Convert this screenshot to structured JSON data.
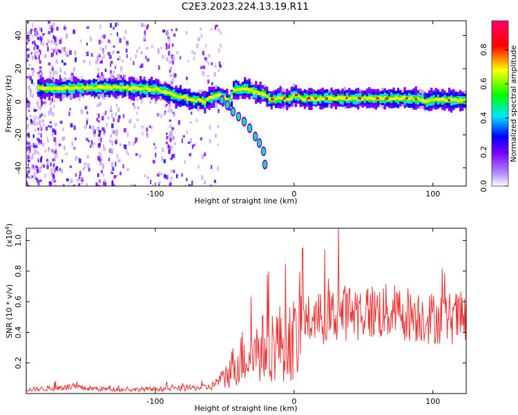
{
  "title": "C2E3.2023.224.13.19.R11",
  "chart_data": [
    {
      "type": "heatmap",
      "xlabel": "Height of straight line (km)",
      "ylabel": "Frequency (Hz)",
      "xlim": [
        -193,
        124
      ],
      "ylim": [
        -51,
        49
      ],
      "xticks": [
        -100,
        0,
        100
      ],
      "yticks": [
        -40,
        -20,
        0,
        20,
        40
      ],
      "colorbar": {
        "label": "Normalized spectral amplitude",
        "range": [
          0.0,
          0.97
        ],
        "ticks": [
          "0.0",
          "0.2",
          "0.4",
          "0.6",
          "0.8"
        ],
        "tick_values": [
          0.0,
          0.2,
          0.4,
          0.6,
          0.8
        ],
        "colormap": [
          "#ffffff",
          "#7a00ff",
          "#0000ff",
          "#00e5ff",
          "#00ff00",
          "#ffff00",
          "#ff0000",
          "#ff0066"
        ]
      },
      "main_trace": [
        [
          -185,
          8
        ],
        [
          -170,
          8
        ],
        [
          -155,
          8.5
        ],
        [
          -140,
          8.5
        ],
        [
          -125,
          8.5
        ],
        [
          -110,
          8
        ],
        [
          -100,
          7.5
        ],
        [
          -90,
          5
        ],
        [
          -85,
          3
        ],
        [
          -80,
          3
        ],
        [
          -75,
          1
        ],
        [
          -70,
          1
        ],
        [
          -65,
          0
        ],
        [
          -60,
          3
        ],
        [
          -55,
          4
        ],
        [
          -50,
          2
        ],
        [
          -47,
          -1
        ],
        [
          -44,
          8
        ],
        [
          -40,
          7
        ],
        [
          -35,
          8
        ],
        [
          -30,
          6
        ],
        [
          -25,
          5
        ],
        [
          -22,
          5
        ],
        [
          -20,
          3
        ],
        [
          -18,
          1
        ],
        [
          -15,
          2
        ],
        [
          -10,
          2
        ],
        [
          -5,
          1.5
        ],
        [
          0,
          4
        ],
        [
          5,
          2
        ],
        [
          10,
          2
        ],
        [
          20,
          2
        ],
        [
          40,
          2
        ],
        [
          60,
          2
        ],
        [
          80,
          2
        ],
        [
          90,
          1.5
        ],
        [
          95,
          0
        ],
        [
          100,
          1.5
        ],
        [
          110,
          1
        ],
        [
          124,
          0.5
        ]
      ],
      "descending_branch": [
        [
          -52,
          1
        ],
        [
          -48,
          -2
        ],
        [
          -44,
          -6
        ],
        [
          -40,
          -9
        ],
        [
          -36,
          -12
        ],
        [
          -32,
          -16
        ],
        [
          -28,
          -21
        ],
        [
          -25,
          -25
        ],
        [
          -22,
          -30
        ],
        [
          -21,
          -38
        ]
      ]
    },
    {
      "type": "line",
      "xlabel": "Height of straight line (km)",
      "ylabel": "SNR (10 * v/v)",
      "y_multiplier": "(x10",
      "y_multiplier_exp": "4",
      "y_multiplier_close": ")",
      "xlim": [
        -193,
        124
      ],
      "ylim": [
        0,
        1.08
      ],
      "xticks": [
        -100,
        0,
        100
      ],
      "yticks": [
        0.2,
        0.4,
        0.6,
        0.8,
        1.0
      ],
      "color": "#ee3333",
      "envelope": [
        [
          -193,
          0.03
        ],
        [
          -160,
          0.05
        ],
        [
          -150,
          0.04
        ],
        [
          -120,
          0.03
        ],
        [
          -80,
          0.04
        ],
        [
          -60,
          0.05
        ],
        [
          -52,
          0.12
        ],
        [
          -45,
          0.25
        ],
        [
          -38,
          0.35
        ],
        [
          -30,
          0.4
        ],
        [
          -25,
          0.42
        ],
        [
          -20,
          0.46
        ],
        [
          -10,
          0.5
        ],
        [
          0,
          0.52
        ],
        [
          10,
          0.56
        ],
        [
          20,
          0.58
        ],
        [
          40,
          0.63
        ],
        [
          60,
          0.63
        ],
        [
          80,
          0.62
        ],
        [
          90,
          0.6
        ],
        [
          100,
          0.58
        ],
        [
          124,
          0.58
        ]
      ]
    }
  ]
}
